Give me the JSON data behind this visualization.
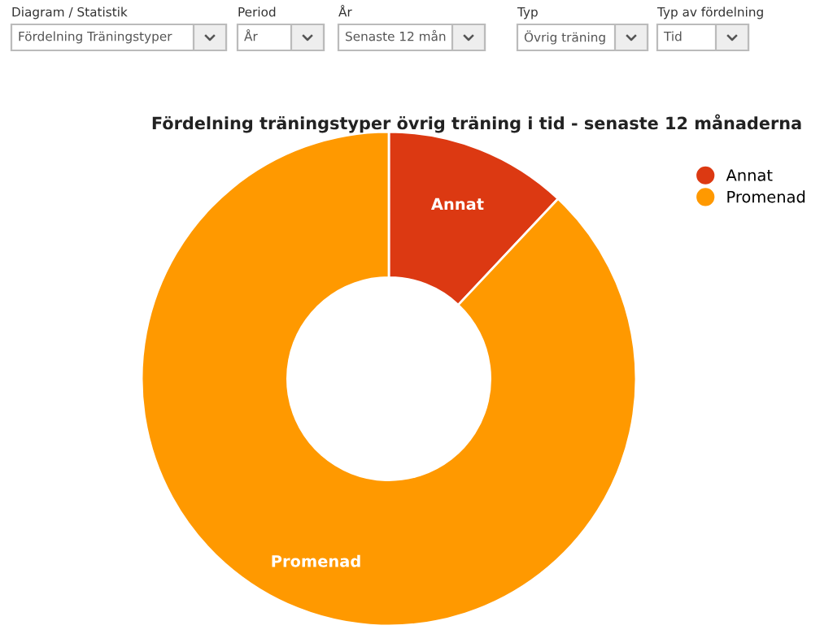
{
  "chart_data": {
    "type": "donut",
    "title": "Fördelning träningstyper övrig träning i tid - senaste 12 månaderna",
    "categories": [
      "Annat",
      "Promenad"
    ],
    "values": [
      12,
      88
    ],
    "colors": [
      "#dc3912",
      "#ff9900"
    ],
    "legend": "top right",
    "annotations": [
      "Diagram / Statistik",
      "Fördelning Träningstyper",
      "Period",
      "År",
      "År",
      "Senaste 12 mån",
      "Typ",
      "Övrig träning",
      "Typ av fördelning",
      "Tid"
    ]
  }
}
